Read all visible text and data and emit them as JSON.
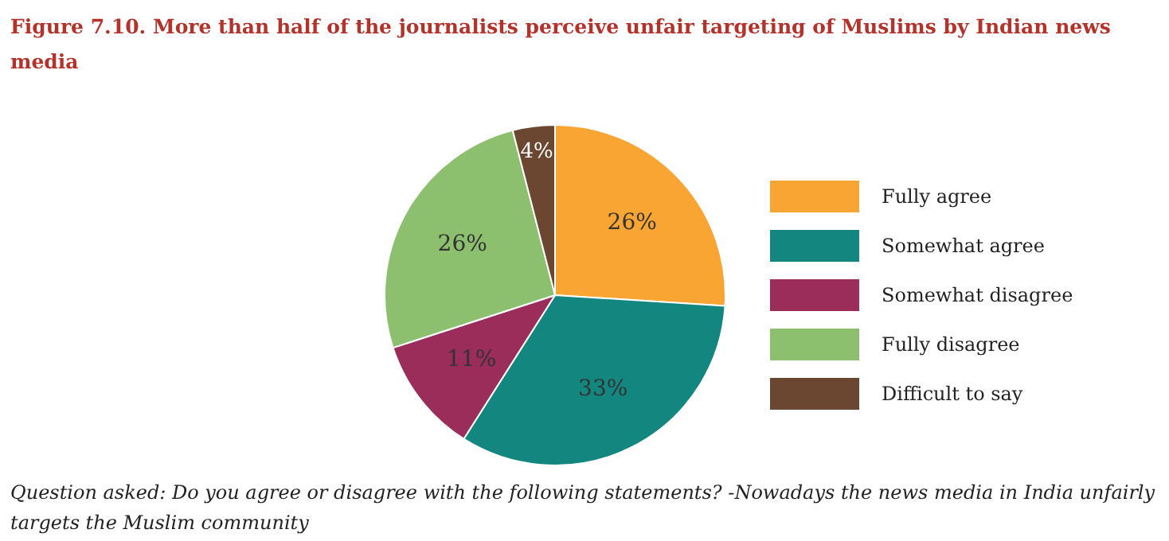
{
  "chart_data": {
    "type": "pie",
    "title": "Figure 7.10.  More than half of the journalists perceive unfair targeting of Muslims by Indian news media",
    "categories": [
      "Fully agree",
      "Somewhat agree",
      "Somewhat disagree",
      "Fully disagree",
      "Difficult to say"
    ],
    "values": [
      26,
      33,
      11,
      26,
      4
    ],
    "colors": [
      "#f9a533",
      "#138680",
      "#9b2d5a",
      "#8cbf6e",
      "#6b4631"
    ],
    "value_labels": [
      "26%",
      "33%",
      "11%",
      "26%",
      "4%"
    ],
    "legend": "right",
    "annotations": [
      "Question asked: Do you agree or disagree with the following statements? -Nowadays the news media in India unfairly targets the Muslim community"
    ]
  }
}
